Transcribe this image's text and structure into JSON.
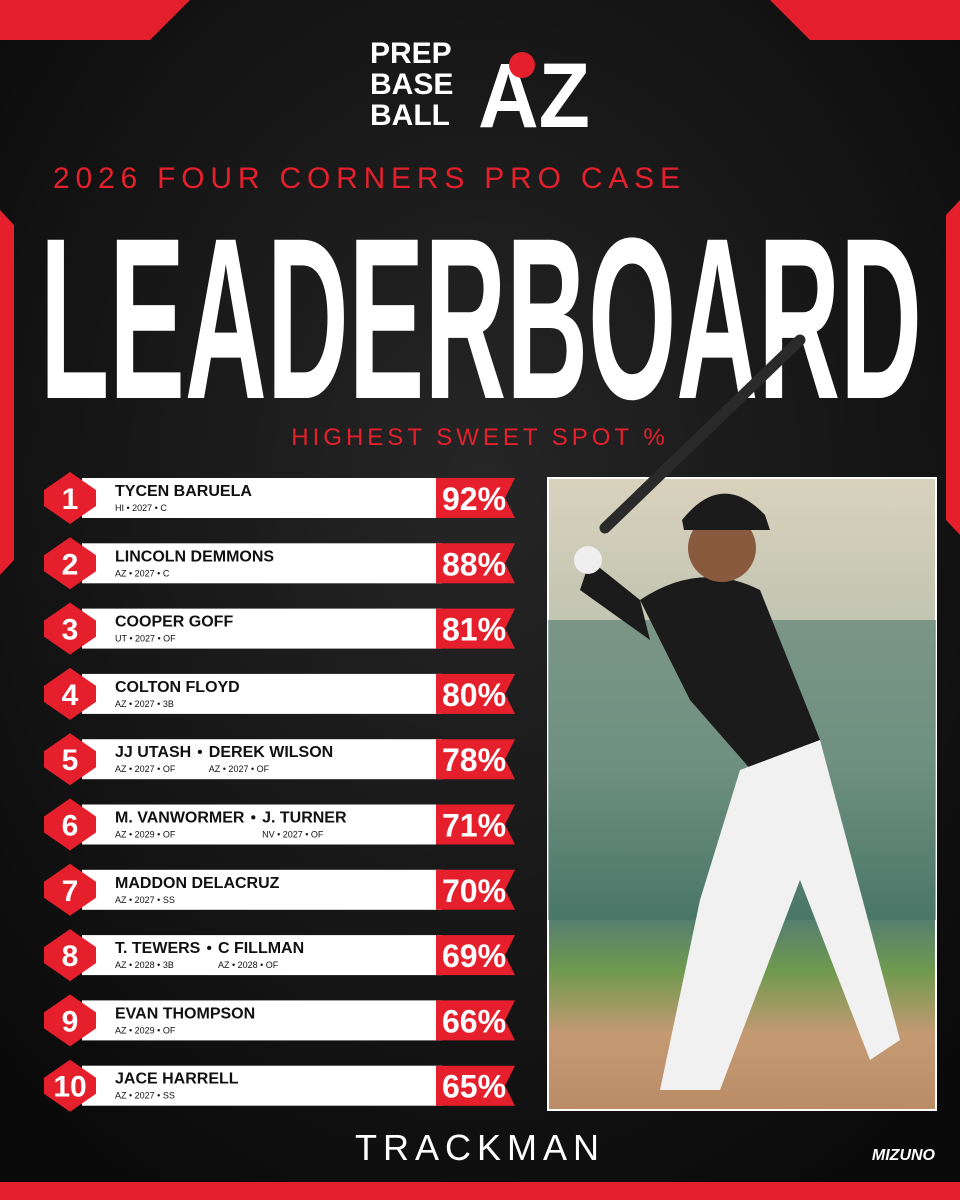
{
  "logo": {
    "lines": [
      "PREP",
      "BASE",
      "BALL"
    ],
    "mark": "AZ"
  },
  "subtitle": "2026 FOUR CORNERS PRO CASE",
  "title": "LEADERBOARD",
  "metric": "HIGHEST SWEET SPOT %",
  "separator": "•",
  "rows": [
    {
      "rank": "1",
      "players": [
        {
          "name": "TYCEN BARUELA",
          "meta": "HI • 2027 • C"
        }
      ],
      "value": "92%"
    },
    {
      "rank": "2",
      "players": [
        {
          "name": "LINCOLN DEMMONS",
          "meta": "AZ • 2027 • C"
        }
      ],
      "value": "88%"
    },
    {
      "rank": "3",
      "players": [
        {
          "name": "COOPER GOFF",
          "meta": "UT • 2027 • OF"
        }
      ],
      "value": "81%"
    },
    {
      "rank": "4",
      "players": [
        {
          "name": "COLTON FLOYD",
          "meta": "AZ • 2027 • 3B"
        }
      ],
      "value": "80%"
    },
    {
      "rank": "5",
      "players": [
        {
          "name": "JJ UTASH",
          "meta": "AZ • 2027 • OF"
        },
        {
          "name": "DEREK WILSON",
          "meta": "AZ • 2027 • OF"
        }
      ],
      "value": "78%"
    },
    {
      "rank": "6",
      "players": [
        {
          "name": "M. VANWORMER",
          "meta": "AZ • 2029 • OF"
        },
        {
          "name": "J. TURNER",
          "meta": "NV • 2027 • OF"
        }
      ],
      "value": "71%"
    },
    {
      "rank": "7",
      "players": [
        {
          "name": "MADDON DELACRUZ",
          "meta": "AZ • 2027 • SS"
        }
      ],
      "value": "70%"
    },
    {
      "rank": "8",
      "players": [
        {
          "name": "T. TEWERS",
          "meta": "AZ • 2028 • 3B"
        },
        {
          "name": "C FILLMAN",
          "meta": "AZ • 2028 • OF"
        }
      ],
      "value": "69%"
    },
    {
      "rank": "9",
      "players": [
        {
          "name": "EVAN THOMPSON",
          "meta": "AZ • 2029 • OF"
        }
      ],
      "value": "66%"
    },
    {
      "rank": "10",
      "players": [
        {
          "name": "JACE HARRELL",
          "meta": "AZ • 2027 • SS"
        }
      ],
      "value": "65%"
    }
  ],
  "footer": {
    "sponsor": "TRACKMAN",
    "brand": "MIZUNO"
  }
}
